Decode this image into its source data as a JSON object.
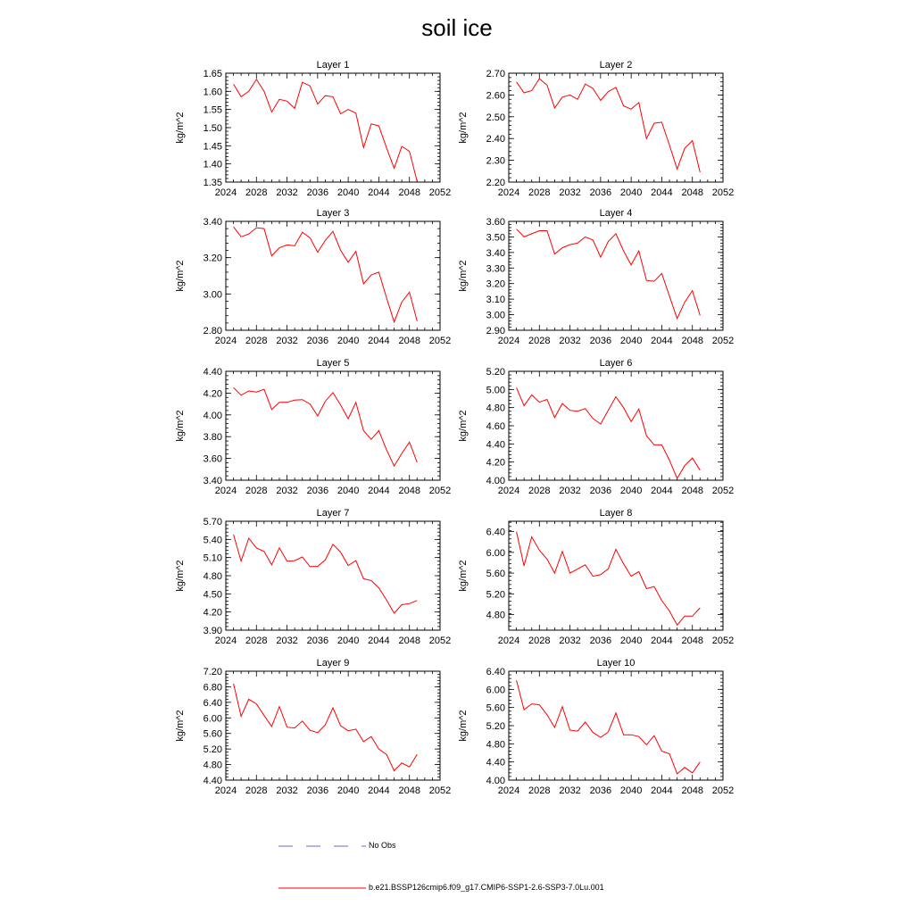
{
  "title": "soil ice",
  "legend": {
    "items": [
      {
        "label": "No Obs",
        "color": "#6a6ad0",
        "style": "dashed"
      },
      {
        "label": "b.e21.BSSP126cmip6.f09_g17.CMIP6-SSP1-2.6-SSP3-7.0Lu.001",
        "color": "#ff0000",
        "style": "solid"
      }
    ]
  },
  "chart_data": [
    {
      "type": "line",
      "title": "Layer 1",
      "ylabel": "kg/m^2",
      "xlim": [
        2024,
        2052
      ],
      "xticks": [
        2024,
        2028,
        2032,
        2036,
        2040,
        2044,
        2048,
        2052
      ],
      "ylim": [
        1.35,
        1.65
      ],
      "yticks": [
        "1.35",
        "1.40",
        "1.45",
        "1.50",
        "1.55",
        "1.60",
        "1.65"
      ],
      "series": [
        {
          "color": "#ff0000",
          "x": [
            2025,
            2026,
            2027,
            2028,
            2029,
            2030,
            2031,
            2032,
            2033,
            2034,
            2035,
            2036,
            2037,
            2038,
            2039,
            2040,
            2041,
            2042,
            2043,
            2044,
            2045,
            2046,
            2047,
            2048,
            2049
          ],
          "y": [
            1.62,
            1.585,
            1.6,
            1.633,
            1.6,
            1.543,
            1.578,
            1.573,
            1.553,
            1.625,
            1.615,
            1.565,
            1.588,
            1.585,
            1.538,
            1.55,
            1.54,
            1.445,
            1.51,
            1.505,
            1.445,
            1.388,
            1.448,
            1.435,
            1.352
          ]
        }
      ]
    },
    {
      "type": "line",
      "title": "Layer 2",
      "ylabel": "kg/m^2",
      "xlim": [
        2024,
        2052
      ],
      "xticks": [
        2024,
        2028,
        2032,
        2036,
        2040,
        2044,
        2048,
        2052
      ],
      "ylim": [
        2.2,
        2.7
      ],
      "yticks": [
        "2.20",
        "2.30",
        "2.40",
        "2.50",
        "2.60",
        "2.70"
      ],
      "series": [
        {
          "color": "#ff0000",
          "x": [
            2025,
            2026,
            2027,
            2028,
            2029,
            2030,
            2031,
            2032,
            2033,
            2034,
            2035,
            2036,
            2037,
            2038,
            2039,
            2040,
            2041,
            2042,
            2043,
            2044,
            2045,
            2046,
            2047,
            2048,
            2049
          ],
          "y": [
            2.66,
            2.61,
            2.62,
            2.675,
            2.645,
            2.54,
            2.59,
            2.6,
            2.58,
            2.65,
            2.63,
            2.575,
            2.615,
            2.635,
            2.55,
            2.535,
            2.565,
            2.4,
            2.47,
            2.475,
            2.37,
            2.26,
            2.355,
            2.39,
            2.245
          ]
        }
      ]
    },
    {
      "type": "line",
      "title": "Layer 3",
      "ylabel": "kg/m^2",
      "xlim": [
        2024,
        2052
      ],
      "xticks": [
        2024,
        2028,
        2032,
        2036,
        2040,
        2044,
        2048,
        2052
      ],
      "ylim": [
        2.8,
        3.4
      ],
      "yticks": [
        "2.80",
        "3.00",
        "3.20",
        "3.40"
      ],
      "series": [
        {
          "color": "#ff0000",
          "x": [
            2025,
            2026,
            2027,
            2028,
            2029,
            2030,
            2031,
            2032,
            2033,
            2034,
            2035,
            2036,
            2037,
            2038,
            2039,
            2040,
            2041,
            2042,
            2043,
            2044,
            2045,
            2046,
            2047,
            2048,
            2049
          ],
          "y": [
            3.37,
            3.315,
            3.33,
            3.365,
            3.36,
            3.21,
            3.255,
            3.27,
            3.265,
            3.34,
            3.31,
            3.23,
            3.295,
            3.345,
            3.24,
            3.175,
            3.235,
            3.055,
            3.105,
            3.12,
            2.98,
            2.845,
            2.955,
            3.01,
            2.85
          ]
        }
      ]
    },
    {
      "type": "line",
      "title": "Layer 4",
      "ylabel": "kg/m^2",
      "xlim": [
        2024,
        2052
      ],
      "xticks": [
        2024,
        2028,
        2032,
        2036,
        2040,
        2044,
        2048,
        2052
      ],
      "ylim": [
        2.9,
        3.6
      ],
      "yticks": [
        "2.90",
        "3.00",
        "3.10",
        "3.20",
        "3.30",
        "3.40",
        "3.50",
        "3.60"
      ],
      "series": [
        {
          "color": "#ff0000",
          "x": [
            2025,
            2026,
            2027,
            2028,
            2029,
            2030,
            2031,
            2032,
            2033,
            2034,
            2035,
            2036,
            2037,
            2038,
            2039,
            2040,
            2041,
            2042,
            2043,
            2044,
            2045,
            2046,
            2047,
            2048,
            2049
          ],
          "y": [
            3.55,
            3.5,
            3.52,
            3.54,
            3.54,
            3.39,
            3.43,
            3.45,
            3.46,
            3.5,
            3.48,
            3.37,
            3.47,
            3.52,
            3.41,
            3.32,
            3.41,
            3.22,
            3.215,
            3.265,
            3.12,
            2.975,
            3.08,
            3.155,
            2.995
          ]
        }
      ]
    },
    {
      "type": "line",
      "title": "Layer 5",
      "ylabel": "kg/m^2",
      "xlim": [
        2024,
        2052
      ],
      "xticks": [
        2024,
        2028,
        2032,
        2036,
        2040,
        2044,
        2048,
        2052
      ],
      "ylim": [
        3.4,
        4.4
      ],
      "yticks": [
        "3.40",
        "3.60",
        "3.80",
        "4.00",
        "4.20",
        "4.40"
      ],
      "series": [
        {
          "color": "#ff0000",
          "x": [
            2025,
            2026,
            2027,
            2028,
            2029,
            2030,
            2031,
            2032,
            2033,
            2034,
            2035,
            2036,
            2037,
            2038,
            2039,
            2040,
            2041,
            2042,
            2043,
            2044,
            2045,
            2046,
            2047,
            2048,
            2049
          ],
          "y": [
            4.25,
            4.18,
            4.22,
            4.21,
            4.235,
            4.05,
            4.115,
            4.115,
            4.135,
            4.14,
            4.1,
            3.99,
            4.125,
            4.205,
            4.09,
            3.965,
            4.115,
            3.855,
            3.775,
            3.855,
            3.68,
            3.53,
            3.645,
            3.75,
            3.565
          ]
        }
      ]
    },
    {
      "type": "line",
      "title": "Layer 6",
      "ylabel": "kg/m^2",
      "xlim": [
        2024,
        2052
      ],
      "xticks": [
        2024,
        2028,
        2032,
        2036,
        2040,
        2044,
        2048,
        2052
      ],
      "ylim": [
        4.0,
        5.2
      ],
      "yticks": [
        "4.00",
        "4.20",
        "4.40",
        "4.60",
        "4.80",
        "5.00",
        "5.20"
      ],
      "series": [
        {
          "color": "#ff0000",
          "x": [
            2025,
            2026,
            2027,
            2028,
            2029,
            2030,
            2031,
            2032,
            2033,
            2034,
            2035,
            2036,
            2037,
            2038,
            2039,
            2040,
            2041,
            2042,
            2043,
            2044,
            2045,
            2046,
            2047,
            2048,
            2049
          ],
          "y": [
            5.02,
            4.82,
            4.94,
            4.86,
            4.89,
            4.69,
            4.845,
            4.77,
            4.76,
            4.79,
            4.68,
            4.62,
            4.77,
            4.92,
            4.8,
            4.645,
            4.785,
            4.49,
            4.39,
            4.39,
            4.22,
            4.02,
            4.16,
            4.245,
            4.11
          ]
        }
      ]
    },
    {
      "type": "line",
      "title": "Layer 7",
      "ylabel": "kg/m^2",
      "xlim": [
        2024,
        2052
      ],
      "xticks": [
        2024,
        2028,
        2032,
        2036,
        2040,
        2044,
        2048,
        2052
      ],
      "ylim": [
        3.9,
        5.7
      ],
      "yticks": [
        "3.90",
        "4.20",
        "4.50",
        "4.80",
        "5.10",
        "5.40",
        "5.70"
      ],
      "series": [
        {
          "color": "#ff0000",
          "x": [
            2025,
            2026,
            2027,
            2028,
            2029,
            2030,
            2031,
            2032,
            2033,
            2034,
            2035,
            2036,
            2037,
            2038,
            2039,
            2040,
            2041,
            2042,
            2043,
            2044,
            2045,
            2046,
            2047,
            2048,
            2049
          ],
          "y": [
            5.48,
            5.04,
            5.42,
            5.26,
            5.2,
            4.98,
            5.26,
            5.04,
            5.05,
            5.11,
            4.95,
            4.955,
            5.06,
            5.32,
            5.19,
            4.97,
            5.05,
            4.75,
            4.72,
            4.6,
            4.4,
            4.18,
            4.32,
            4.34,
            4.39
          ]
        }
      ]
    },
    {
      "type": "line",
      "title": "Layer 8",
      "ylabel": "kg/m^2",
      "xlim": [
        2024,
        2052
      ],
      "xticks": [
        2024,
        2028,
        2032,
        2036,
        2040,
        2044,
        2048,
        2052
      ],
      "ylim": [
        4.5,
        6.6
      ],
      "yticks": [
        "4.80",
        "5.20",
        "5.60",
        "6.00",
        "6.40"
      ],
      "series": [
        {
          "color": "#ff0000",
          "x": [
            2025,
            2026,
            2027,
            2028,
            2029,
            2030,
            2031,
            2032,
            2033,
            2034,
            2035,
            2036,
            2037,
            2038,
            2039,
            2040,
            2041,
            2042,
            2043,
            2044,
            2045,
            2046,
            2047,
            2048,
            2049
          ],
          "y": [
            6.4,
            5.74,
            6.3,
            6.04,
            5.87,
            5.6,
            6.02,
            5.6,
            5.68,
            5.76,
            5.54,
            5.57,
            5.68,
            6.06,
            5.78,
            5.54,
            5.63,
            5.3,
            5.34,
            5.07,
            4.87,
            4.6,
            4.77,
            4.77,
            4.93
          ]
        }
      ]
    },
    {
      "type": "line",
      "title": "Layer 9",
      "ylabel": "kg/m^2",
      "xlim": [
        2024,
        2052
      ],
      "xticks": [
        2024,
        2028,
        2032,
        2036,
        2040,
        2044,
        2048,
        2052
      ],
      "ylim": [
        4.4,
        7.2
      ],
      "yticks": [
        "4.40",
        "4.80",
        "5.20",
        "5.60",
        "6.00",
        "6.40",
        "6.80",
        "7.20"
      ],
      "series": [
        {
          "color": "#ff0000",
          "x": [
            2025,
            2026,
            2027,
            2028,
            2029,
            2030,
            2031,
            2032,
            2033,
            2034,
            2035,
            2036,
            2037,
            2038,
            2039,
            2040,
            2041,
            2042,
            2043,
            2044,
            2045,
            2046,
            2047,
            2048,
            2049
          ],
          "y": [
            6.88,
            6.04,
            6.48,
            6.36,
            6.06,
            5.78,
            6.29,
            5.76,
            5.74,
            5.92,
            5.68,
            5.62,
            5.82,
            6.26,
            5.8,
            5.67,
            5.71,
            5.39,
            5.52,
            5.2,
            5.06,
            4.64,
            4.84,
            4.74,
            5.06
          ]
        }
      ]
    },
    {
      "type": "line",
      "title": "Layer 10",
      "ylabel": "kg/m^2",
      "xlim": [
        2024,
        2052
      ],
      "xticks": [
        2024,
        2028,
        2032,
        2036,
        2040,
        2044,
        2048,
        2052
      ],
      "ylim": [
        4.0,
        6.4
      ],
      "yticks": [
        "4.00",
        "4.40",
        "4.80",
        "5.20",
        "5.60",
        "6.00",
        "6.40"
      ],
      "series": [
        {
          "color": "#ff0000",
          "x": [
            2025,
            2026,
            2027,
            2028,
            2029,
            2030,
            2031,
            2032,
            2033,
            2034,
            2035,
            2036,
            2037,
            2038,
            2039,
            2040,
            2041,
            2042,
            2043,
            2044,
            2045,
            2046,
            2047,
            2048,
            2049
          ],
          "y": [
            6.2,
            5.55,
            5.68,
            5.66,
            5.44,
            5.16,
            5.62,
            5.1,
            5.08,
            5.28,
            5.05,
            4.94,
            5.06,
            5.48,
            5.0,
            5.0,
            4.96,
            4.78,
            4.98,
            4.64,
            4.58,
            4.14,
            4.28,
            4.16,
            4.4
          ]
        }
      ]
    }
  ]
}
